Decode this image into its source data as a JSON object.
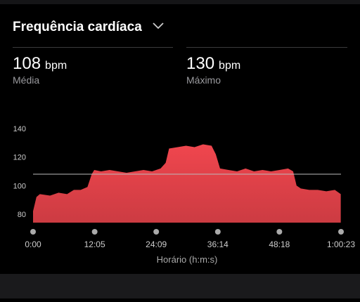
{
  "header": {
    "title": "Frequência cardíaca"
  },
  "stats": [
    {
      "value": 108,
      "unit": "bpm",
      "label": "Média"
    },
    {
      "value": 130,
      "unit": "bpm",
      "label": "Máximo"
    }
  ],
  "chart_data": {
    "type": "area",
    "x": [
      0,
      40,
      80,
      200,
      300,
      400,
      480,
      560,
      640,
      690,
      720,
      800,
      900,
      1000,
      1100,
      1200,
      1300,
      1400,
      1500,
      1560,
      1600,
      1700,
      1800,
      1900,
      2000,
      2100,
      2150,
      2200,
      2300,
      2400,
      2500,
      2600,
      2700,
      2800,
      2900,
      3000,
      3060,
      3100,
      3150,
      3250,
      3350,
      3450,
      3550,
      3620
    ],
    "series": [
      {
        "color": "#f0464e",
        "values": [
          82,
          92,
          94,
          93,
          95,
          94,
          97,
          97,
          99,
          108,
          111,
          110,
          111,
          110,
          109,
          110,
          111,
          110,
          112,
          116,
          126,
          127,
          128,
          127,
          129,
          128,
          122,
          112,
          111,
          110,
          112,
          110,
          111,
          110,
          111,
          112,
          110,
          100,
          98,
          97,
          97,
          96,
          97,
          94
        ]
      }
    ],
    "xlim": [
      0,
      3623
    ],
    "xticks": [
      {
        "value": 0,
        "label": "0:00"
      },
      {
        "value": 725,
        "label": "12:05"
      },
      {
        "value": 1449,
        "label": "24:09"
      },
      {
        "value": 2174,
        "label": "36:14"
      },
      {
        "value": 2898,
        "label": "48:18"
      },
      {
        "value": 3623,
        "label": "1:00:23"
      }
    ],
    "ylim": [
      74,
      145
    ],
    "yticks": [
      80,
      100,
      120,
      140
    ],
    "xlabel": "Horário (h:m:s)"
  }
}
